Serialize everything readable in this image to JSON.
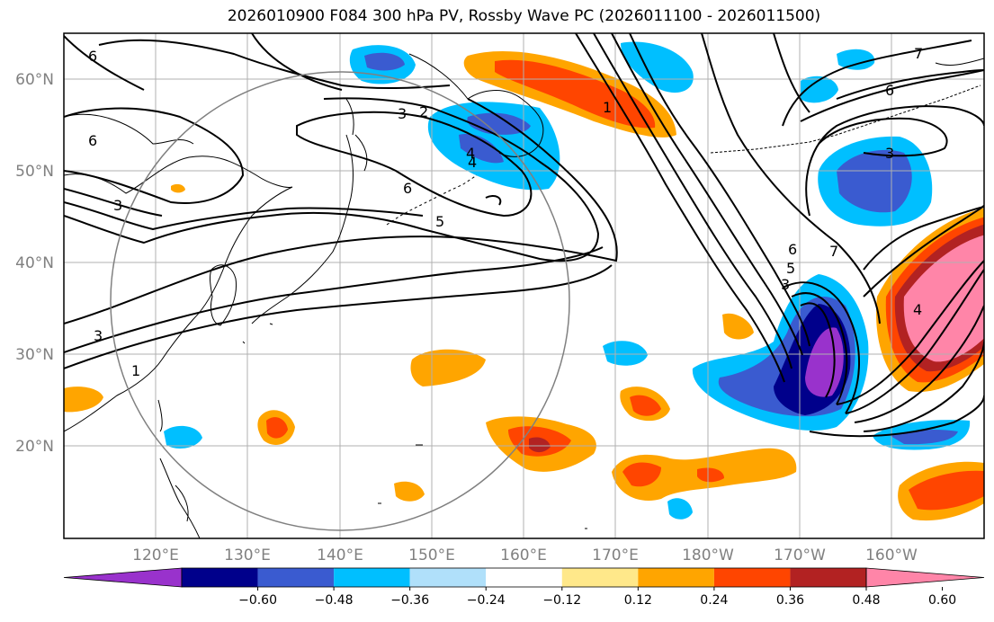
{
  "title": "2026010900 F084 300 hPa PV, Rossby Wave PC (2026011100 - 2026011500)",
  "lat_labels": [
    "60°N",
    "50°N",
    "40°N",
    "30°N",
    "20°N"
  ],
  "lon_labels": [
    "120°E",
    "130°E",
    "140°E",
    "150°E",
    "160°E",
    "170°E",
    "180°W",
    "170°W",
    "160°W"
  ],
  "colorbar": {
    "ticks": [
      "−0.60",
      "−0.48",
      "−0.36",
      "−0.24",
      "−0.12",
      "0.12",
      "0.24",
      "0.36",
      "0.48",
      "0.60"
    ],
    "colors": [
      "#9932cc",
      "#00008b",
      "#3a5bd0",
      "#00bfff",
      "#b0e0fa",
      "#ffffff",
      "#ffe88a",
      "#ffa500",
      "#ff4500",
      "#b22222",
      "#ff85a8"
    ]
  },
  "contour_labels": [
    "6",
    "6",
    "3",
    "2",
    "4",
    "6",
    "5",
    "1",
    "3",
    "1",
    "6",
    "7",
    "4",
    "5",
    "3",
    "7",
    "6",
    "3",
    "4",
    "3"
  ]
}
